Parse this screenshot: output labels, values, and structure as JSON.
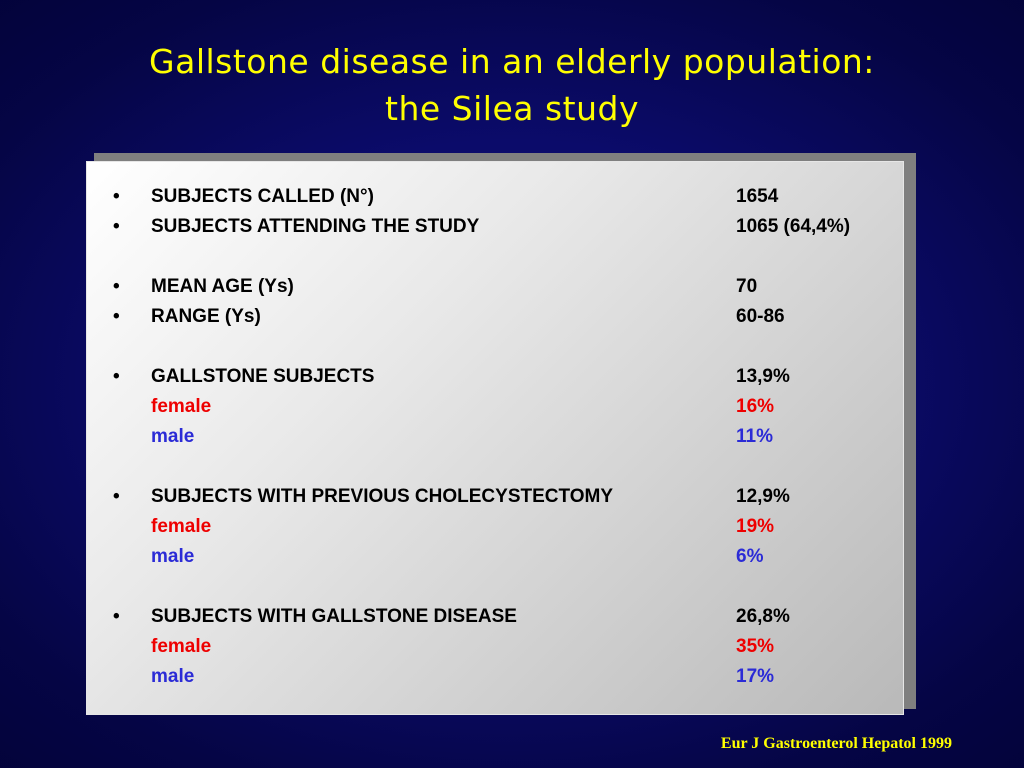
{
  "slide": {
    "title_line1": "Gallstone disease in an elderly population:",
    "title_line2": "the Silea study",
    "bullet_glyph": "•",
    "citation": "Eur J Gastroenterol Hepatol 1999"
  },
  "rows": {
    "called": {
      "label": "SUBJECTS CALLED  (N°)",
      "value": "1654"
    },
    "attending": {
      "label": "SUBJECTS ATTENDING THE STUDY",
      "value": "1065 (64,4%)"
    },
    "mean_age": {
      "label": "MEAN AGE (Ys)",
      "value": "70"
    },
    "range": {
      "label": "RANGE (Ys)",
      "value": "60-86"
    },
    "gallstone": {
      "label": "GALLSTONE SUBJECTS",
      "value": "13,9%",
      "female_label": "female",
      "female_value": "16%",
      "male_label": "male",
      "male_value": "11%"
    },
    "cholecystectomy": {
      "label": "SUBJECTS WITH PREVIOUS CHOLECYSTECTOMY",
      "value": "12,9%",
      "female_label": "female",
      "female_value": "19%",
      "male_label": "male",
      "male_value": "6%"
    },
    "disease": {
      "label": "SUBJECTS WITH GALLSTONE DISEASE",
      "value": "26,8%",
      "female_label": "female",
      "female_value": "35%",
      "male_label": "male",
      "male_value": "17%"
    }
  },
  "colors": {
    "background": "#0b0b6a",
    "title": "#ffff00",
    "female": "#ee0000",
    "male": "#2b2bd6",
    "panel": "#e0e0e0"
  }
}
